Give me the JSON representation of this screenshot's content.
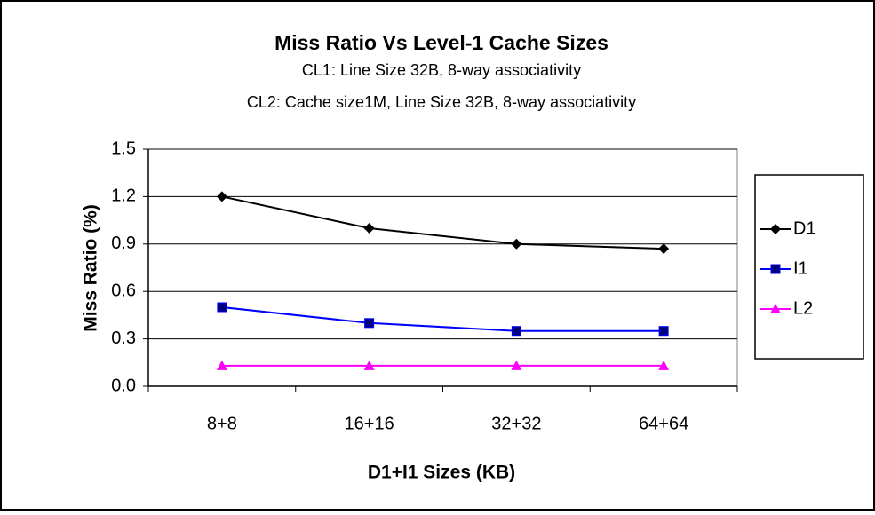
{
  "chart_data": {
    "type": "line",
    "title": "Miss Ratio Vs Level-1 Cache Sizes",
    "subtitle": [
      "CL1: Line Size 32B, 8-way associativity",
      "CL2: Cache size1M, Line Size 32B, 8-way associativity"
    ],
    "x_label": "D1+I1 Sizes (KB)",
    "y_label": "Miss Ratio (%)",
    "categories": [
      "8+8",
      "16+16",
      "32+32",
      "64+64"
    ],
    "series": [
      {
        "name": "D1",
        "color": "#000000",
        "marker": "diamond",
        "values": [
          1.2,
          1.0,
          0.9,
          0.87
        ]
      },
      {
        "name": "I1",
        "color": "#0000ff",
        "marker": "square",
        "values": [
          0.5,
          0.4,
          0.35,
          0.35
        ]
      },
      {
        "name": "L2",
        "color": "#ff00ff",
        "marker": "triangle",
        "values": [
          0.13,
          0.13,
          0.13,
          0.13
        ]
      }
    ],
    "ylim": [
      0,
      1.5
    ],
    "yticks": [
      {
        "value": 0,
        "label": "0.0"
      },
      0.3,
      0.6,
      0.9,
      1.2,
      1.5
    ],
    "grid": true,
    "legend": "right"
  }
}
